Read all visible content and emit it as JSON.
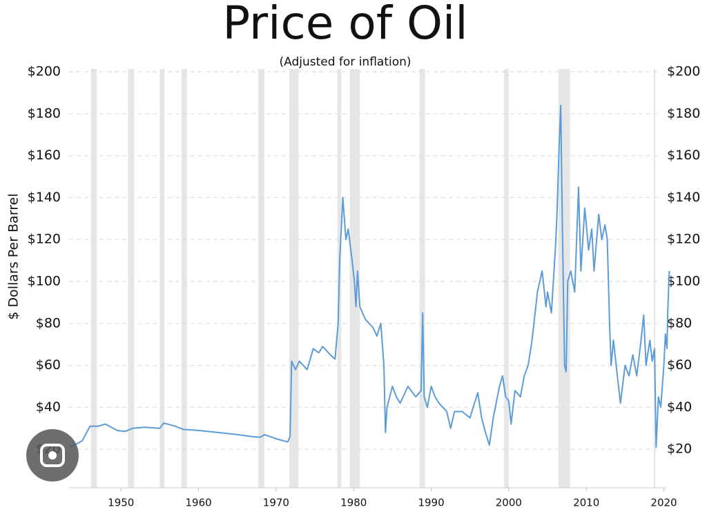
{
  "chart_data": {
    "type": "line",
    "title": "Price of Oil",
    "subtitle": "(Adjusted for inflation)",
    "y_label": "$ Dollars Per Barrel",
    "color": "#5b9bd8",
    "band_color": "#e6e6e6",
    "grid": true,
    "xlim": [
      1943.3,
      2021.2
    ],
    "xticks": [
      1950,
      1960,
      1970,
      1980,
      1990,
      2000,
      2010,
      2020
    ],
    "ylim": [
      0,
      200
    ],
    "yticks": [
      {
        "value": 20,
        "label": "$20"
      },
      {
        "value": 40,
        "label": "$40"
      },
      {
        "value": 60,
        "label": "$60"
      },
      {
        "value": 80,
        "label": "$80"
      },
      {
        "value": 100,
        "label": "$100"
      },
      {
        "value": 120,
        "label": "$120"
      },
      {
        "value": 140,
        "label": "$140"
      },
      {
        "value": 160,
        "label": "$160"
      },
      {
        "value": 180,
        "label": "$180"
      },
      {
        "value": 200,
        "label": "$200"
      }
    ],
    "y2lim": [
      0,
      200
    ],
    "y2ticks": [
      {
        "value": 20,
        "label": "$20"
      },
      {
        "value": 40,
        "label": "$40"
      },
      {
        "value": 60,
        "label": "$60"
      },
      {
        "value": 80,
        "label": "$80"
      },
      {
        "value": 100,
        "label": "$100"
      },
      {
        "value": 120,
        "label": "$120"
      },
      {
        "value": 140,
        "label": "$140"
      },
      {
        "value": 160,
        "label": "$160"
      },
      {
        "value": 180,
        "label": "$180"
      },
      {
        "value": 200,
        "label": "$200"
      }
    ],
    "recession_bands": [
      [
        1946.1,
        1946.9
      ],
      [
        1950.9,
        1951.7
      ],
      [
        1955.0,
        1955.6
      ],
      [
        1957.8,
        1958.5
      ],
      [
        1967.7,
        1968.5
      ],
      [
        1971.7,
        1972.9
      ],
      [
        1977.9,
        1978.4
      ],
      [
        1979.5,
        1980.8
      ],
      [
        1988.5,
        1989.2
      ],
      [
        1999.4,
        2000.0
      ],
      [
        2006.4,
        2007.9
      ],
      [
        2018.7,
        2018.9
      ]
    ],
    "x": [
      1943.5,
      1945.0,
      1946.0,
      1947.0,
      1948.0,
      1949.5,
      1950.5,
      1951.5,
      1953.0,
      1955.0,
      1955.5,
      1957.0,
      1958.0,
      1960.0,
      1965.0,
      1967.0,
      1968.0,
      1968.5,
      1970.0,
      1971.5,
      1971.8,
      1972.0,
      1972.5,
      1973.0,
      1974.0,
      1974.8,
      1975.5,
      1976.0,
      1977.0,
      1977.6,
      1978.0,
      1978.2,
      1978.6,
      1979.0,
      1979.3,
      1979.8,
      1980.1,
      1980.3,
      1980.5,
      1980.8,
      1981.5,
      1982.5,
      1983.0,
      1983.5,
      1983.9,
      1984.1,
      1984.3,
      1985.0,
      1985.5,
      1986.0,
      1987.0,
      1988.0,
      1988.7,
      1988.9,
      1989.1,
      1989.5,
      1990.0,
      1990.5,
      1991.0,
      1992.0,
      1992.5,
      1993.0,
      1994.0,
      1995.0,
      1996.0,
      1996.5,
      1997.0,
      1997.5,
      1998.0,
      1998.8,
      1999.2,
      1999.6,
      2000.0,
      2000.3,
      2000.8,
      2001.5,
      2002.0,
      2002.5,
      2003.0,
      2003.7,
      2004.3,
      2004.8,
      2005.0,
      2005.5,
      2006.0,
      2006.2,
      2006.5,
      2006.7,
      2006.9,
      2007.2,
      2007.4,
      2007.6,
      2008.0,
      2008.5,
      2009.0,
      2009.3,
      2009.8,
      2010.3,
      2010.7,
      2011.0,
      2011.6,
      2012.0,
      2012.4,
      2012.7,
      2013.0,
      2013.2,
      2013.5,
      2014.0,
      2014.4,
      2015.0,
      2015.5,
      2016.0,
      2016.5,
      2017.0,
      2017.4,
      2017.7,
      2018.2,
      2018.5,
      2018.8,
      2019.0,
      2019.3,
      2019.6,
      2020.0,
      2020.2,
      2020.4,
      2020.5,
      2020.7
    ],
    "values": [
      21,
      24,
      31,
      31,
      32,
      29,
      28.5,
      30,
      30.5,
      30,
      32.5,
      31,
      29.5,
      29,
      27,
      26,
      25.8,
      27,
      25,
      23.5,
      26,
      62,
      58,
      62,
      58,
      68,
      66,
      69,
      65,
      63,
      80,
      110,
      140,
      120,
      125,
      110,
      100,
      88,
      105,
      88,
      82,
      78,
      74,
      80,
      60,
      28,
      40,
      50,
      45,
      42,
      50,
      45,
      48,
      85,
      45,
      40,
      50,
      45,
      42,
      38,
      30,
      38,
      38,
      35,
      47,
      35,
      28,
      22,
      35,
      50,
      55,
      45,
      43,
      32,
      48,
      45,
      55,
      60,
      72,
      95,
      105,
      88,
      95,
      85,
      115,
      130,
      165,
      184,
      130,
      60,
      57,
      100,
      105,
      95,
      145,
      105,
      135,
      115,
      125,
      105,
      132,
      120,
      127,
      120,
      80,
      60,
      72,
      55,
      42,
      60,
      55,
      65,
      55,
      70,
      84,
      60,
      72,
      62,
      68,
      21,
      45,
      40,
      60,
      75,
      68,
      85,
      105
    ]
  }
}
